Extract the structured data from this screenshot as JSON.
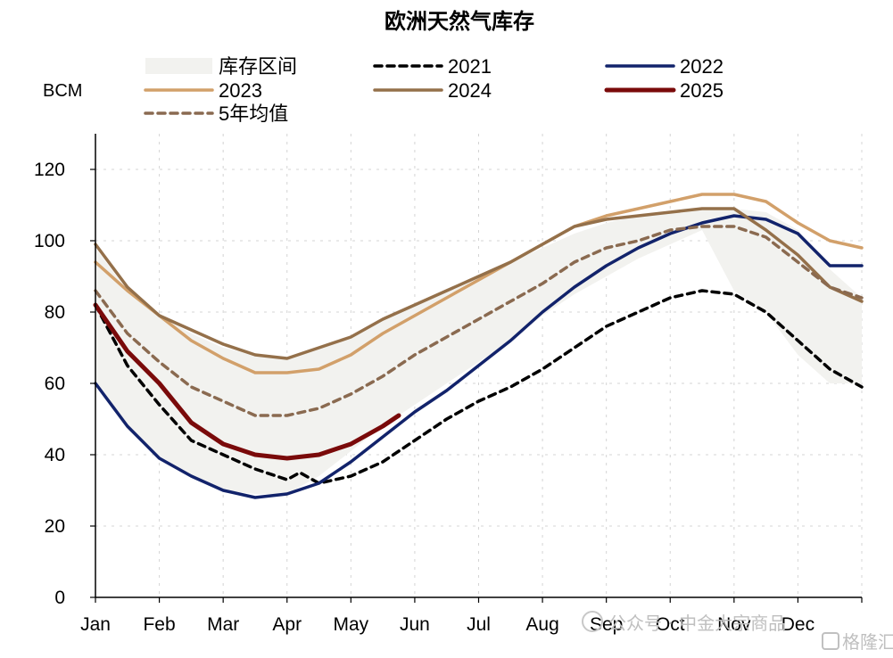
{
  "chart_data": {
    "type": "line",
    "title": "欧洲天然气库存",
    "ylabel": "BCM",
    "xlabel": "",
    "ylim": [
      0,
      130
    ],
    "yticks": [
      0,
      20,
      40,
      60,
      80,
      100,
      120
    ],
    "x_domain": [
      0,
      12
    ],
    "months": [
      "Jan",
      "Feb",
      "Mar",
      "Apr",
      "May",
      "Jun",
      "Jul",
      "Aug",
      "Sep",
      "Oct",
      "Nov",
      "Dec"
    ],
    "grid": true,
    "legend_position": "top",
    "band": {
      "name": "库存区间",
      "color": "#f2f2ef",
      "x": [
        0,
        0.5,
        1,
        1.5,
        2,
        2.5,
        3,
        3.5,
        4,
        4.5,
        5,
        5.5,
        6,
        6.5,
        7,
        7.5,
        8,
        8.5,
        9,
        9.5,
        10,
        10.5,
        11,
        11.5,
        12
      ],
      "upper": [
        98,
        86,
        79,
        74,
        70,
        68,
        67,
        70,
        73,
        78,
        82,
        86,
        90,
        94,
        98,
        102,
        105,
        107,
        108,
        109,
        109,
        108,
        103,
        92,
        84
      ],
      "lower": [
        60,
        47,
        39,
        34,
        30,
        29,
        29,
        34,
        41,
        48,
        54,
        60,
        66,
        72,
        79,
        85,
        90,
        95,
        99,
        103,
        86,
        80,
        68,
        60,
        60
      ]
    },
    "series": [
      {
        "name": "2021",
        "color": "#000000",
        "dash": "8,6",
        "width": 3.5,
        "x": [
          0,
          0.5,
          1,
          1.5,
          2,
          2.5,
          3,
          3.2,
          3.5,
          4,
          4.5,
          5,
          5.5,
          6,
          6.5,
          7,
          7.5,
          8,
          8.5,
          9,
          9.5,
          10,
          10.5,
          11,
          11.5,
          12
        ],
        "y": [
          82,
          65,
          54,
          44,
          40,
          36,
          33,
          35,
          32,
          34,
          38,
          44,
          50,
          55,
          59,
          64,
          70,
          76,
          80,
          84,
          86,
          85,
          80,
          72,
          64,
          59
        ]
      },
      {
        "name": "2022",
        "color": "#12236b",
        "dash": "",
        "width": 3.5,
        "x": [
          0,
          0.5,
          1,
          1.5,
          2,
          2.5,
          3,
          3.5,
          4,
          4.5,
          5,
          5.5,
          6,
          6.5,
          7,
          7.5,
          8,
          8.5,
          9,
          9.5,
          10,
          10.5,
          11,
          11.5,
          12
        ],
        "y": [
          60,
          48,
          39,
          34,
          30,
          28,
          29,
          32,
          38,
          45,
          52,
          58,
          65,
          72,
          80,
          87,
          93,
          98,
          102,
          105,
          107,
          106,
          102,
          93,
          93
        ]
      },
      {
        "name": "2023",
        "color": "#d2a06a",
        "dash": "",
        "width": 3.5,
        "x": [
          0,
          0.5,
          1,
          1.5,
          2,
          2.5,
          3,
          3.5,
          4,
          4.5,
          5,
          5.5,
          6,
          6.5,
          7,
          7.5,
          8,
          8.5,
          9,
          9.5,
          10,
          10.5,
          11,
          11.5,
          12
        ],
        "y": [
          94,
          86,
          79,
          72,
          67,
          63,
          63,
          64,
          68,
          74,
          79,
          84,
          89,
          94,
          99,
          104,
          107,
          109,
          111,
          113,
          113,
          111,
          105,
          100,
          98
        ]
      },
      {
        "name": "2024",
        "color": "#94704a",
        "dash": "",
        "width": 3.5,
        "x": [
          0,
          0.5,
          1,
          1.5,
          2,
          2.5,
          3,
          3.5,
          4,
          4.5,
          5,
          5.5,
          6,
          6.5,
          7,
          7.5,
          8,
          8.5,
          9,
          9.5,
          10,
          10.5,
          11,
          11.5,
          12
        ],
        "y": [
          99,
          87,
          79,
          75,
          71,
          68,
          67,
          70,
          73,
          78,
          82,
          86,
          90,
          94,
          99,
          104,
          106,
          107,
          108,
          109,
          109,
          103,
          96,
          87,
          83
        ]
      },
      {
        "name": "2025",
        "color": "#7a0a0a",
        "dash": "",
        "width": 5,
        "x": [
          0,
          0.5,
          1,
          1.5,
          2,
          2.5,
          3,
          3.5,
          4,
          4.5,
          4.75
        ],
        "y": [
          82,
          69,
          60,
          49,
          43,
          40,
          39,
          40,
          43,
          48,
          51
        ]
      },
      {
        "name": "5年均值",
        "color": "#8a6a50",
        "dash": "8,6",
        "width": 3.5,
        "x": [
          0,
          0.5,
          1,
          1.5,
          2,
          2.5,
          3,
          3.5,
          4,
          4.5,
          5,
          5.5,
          6,
          6.5,
          7,
          7.5,
          8,
          8.5,
          9,
          9.5,
          10,
          10.5,
          11,
          11.5,
          12
        ],
        "y": [
          86,
          74,
          66,
          59,
          55,
          51,
          51,
          53,
          57,
          62,
          68,
          73,
          78,
          83,
          88,
          94,
          98,
          100,
          103,
          104,
          104,
          101,
          94,
          87,
          84
        ]
      }
    ]
  },
  "watermark": {
    "left": "公众号 · 中金大宗商品",
    "right": "格隆汇"
  }
}
